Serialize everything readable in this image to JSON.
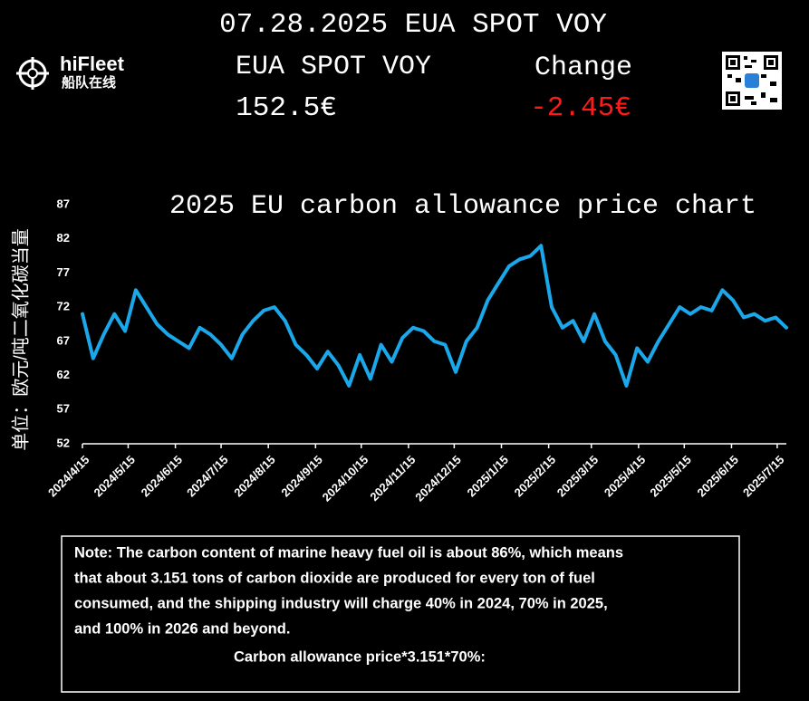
{
  "header": {
    "title": "07.28.2025 EUA SPOT VOY",
    "brand": "hiFleet",
    "brand_cn": "船队在线",
    "price_label": "EUA SPOT VOY",
    "change_label": "Change",
    "price": "152.5€",
    "change": "-2.45€"
  },
  "chart_data": {
    "type": "line",
    "title": "2025 EU carbon allowance price chart",
    "y_label": "单位：欧元/吨二氧化碳当量",
    "x": [
      "2024/4/15",
      "2024/4/22",
      "2024/4/29",
      "2024/5/6",
      "2024/5/13",
      "2024/5/20",
      "2024/5/27",
      "2024/6/3",
      "2024/6/10",
      "2024/6/17",
      "2024/6/24",
      "2024/7/1",
      "2024/7/8",
      "2024/7/15",
      "2024/7/22",
      "2024/7/29",
      "2024/8/5",
      "2024/8/12",
      "2024/8/19",
      "2024/8/26",
      "2024/9/2",
      "2024/9/9",
      "2024/9/16",
      "2024/9/23",
      "2024/9/30",
      "2024/10/7",
      "2024/10/14",
      "2024/10/21",
      "2024/10/28",
      "2024/11/4",
      "2024/11/11",
      "2024/11/18",
      "2024/11/25",
      "2024/12/2",
      "2024/12/9",
      "2024/12/16",
      "2024/12/23",
      "2024/12/30",
      "2025/1/6",
      "2025/1/13",
      "2025/1/20",
      "2025/1/27",
      "2025/2/3",
      "2025/2/10",
      "2025/2/17",
      "2025/2/24",
      "2025/3/3",
      "2025/3/10",
      "2025/3/17",
      "2025/3/24",
      "2025/3/31",
      "2025/4/7",
      "2025/4/14",
      "2025/4/21",
      "2025/4/28",
      "2025/5/5",
      "2025/5/12",
      "2025/5/19",
      "2025/5/26",
      "2025/6/2",
      "2025/6/9",
      "2025/6/16",
      "2025/6/23",
      "2025/6/30",
      "2025/7/7",
      "2025/7/14",
      "2025/7/21"
    ],
    "series": [
      {
        "name": "EUA",
        "color": "#1ba8ea",
        "values": [
          71,
          64.5,
          68,
          71,
          68.5,
          74.5,
          72,
          69.5,
          68,
          67,
          66,
          69,
          68,
          66.5,
          64.5,
          68,
          70,
          71.5,
          72,
          70,
          66.5,
          65,
          63,
          65.5,
          63.5,
          60.5,
          65,
          61.5,
          66.5,
          64,
          67.5,
          69,
          68.5,
          67,
          66.5,
          62.5,
          67,
          69,
          73,
          75.5,
          78,
          79,
          79.5,
          81,
          72,
          69,
          70,
          67,
          71,
          67,
          65,
          60.5,
          66,
          64,
          67,
          69.5,
          72,
          71,
          72,
          71.5,
          74.5,
          73,
          70.5,
          71,
          70,
          70.5,
          69
        ]
      }
    ],
    "xlim": [
      "2024/4/15",
      "2025/7/21"
    ],
    "xticks": [
      "2024/4/15",
      "2024/5/15",
      "2024/6/15",
      "2024/7/15",
      "2024/8/15",
      "2024/9/15",
      "2024/10/15",
      "2024/11/15",
      "2024/12/15",
      "2025/1/15",
      "2025/2/15",
      "2025/3/15",
      "2025/4/15",
      "2025/5/15",
      "2025/6/15",
      "2025/7/15"
    ],
    "ylim": [
      52,
      87
    ],
    "yticks": [
      52,
      57,
      62,
      67,
      72,
      77,
      82,
      87
    ],
    "grid": false,
    "legend": false
  },
  "note": {
    "lines": [
      "Note: The carbon content of marine heavy fuel oil is about 86%, which means",
      "that about 3.151 tons of carbon dioxide are produced for every ton of fuel",
      "consumed, and the shipping industry will charge 40% in 2024, 70% in 2025,",
      "and 100% in 2026 and beyond."
    ],
    "formula": "Carbon allowance price*3.151*70%:"
  }
}
